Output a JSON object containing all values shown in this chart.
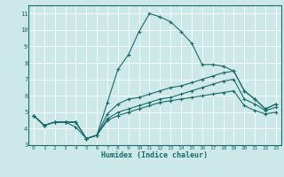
{
  "title": "",
  "xlabel": "Humidex (Indice chaleur)",
  "ylabel": "",
  "background_color": "#cde8e8",
  "grid_color": "#ffffff",
  "line_color": "#1a6b6b",
  "xlim": [
    -0.5,
    23.5
  ],
  "ylim": [
    3.0,
    11.5
  ],
  "xticks": [
    0,
    1,
    2,
    3,
    4,
    5,
    6,
    7,
    8,
    9,
    10,
    11,
    12,
    13,
    14,
    15,
    16,
    17,
    18,
    19,
    20,
    21,
    22,
    23
  ],
  "yticks": [
    3,
    4,
    5,
    6,
    7,
    8,
    9,
    10,
    11
  ],
  "lines": [
    {
      "x": [
        0,
        1,
        2,
        3,
        4,
        5,
        6,
        7,
        8,
        9,
        10,
        11,
        12,
        13,
        14,
        15,
        16,
        17,
        18,
        19,
        20,
        21,
        22,
        23
      ],
      "y": [
        4.8,
        4.2,
        4.4,
        4.4,
        4.4,
        3.4,
        3.6,
        5.6,
        7.6,
        8.5,
        9.9,
        11.0,
        10.8,
        10.5,
        9.9,
        9.2,
        7.9,
        7.9,
        7.8,
        7.5,
        6.3,
        5.8,
        5.2,
        5.5
      ]
    },
    {
      "x": [
        0,
        1,
        2,
        3,
        4,
        5,
        6,
        7,
        8,
        9,
        10,
        11,
        12,
        13,
        14,
        15,
        16,
        17,
        18,
        19,
        20,
        21,
        22,
        23
      ],
      "y": [
        4.8,
        4.2,
        4.4,
        4.4,
        4.4,
        3.4,
        3.6,
        4.9,
        5.5,
        5.8,
        5.9,
        6.1,
        6.3,
        6.5,
        6.6,
        6.8,
        7.0,
        7.2,
        7.4,
        7.5,
        6.3,
        5.8,
        5.2,
        5.5
      ]
    },
    {
      "x": [
        0,
        1,
        2,
        3,
        4,
        5,
        6,
        7,
        8,
        9,
        10,
        11,
        12,
        13,
        14,
        15,
        16,
        17,
        18,
        19,
        20,
        21,
        22,
        23
      ],
      "y": [
        4.8,
        4.2,
        4.4,
        4.4,
        4.4,
        3.4,
        3.6,
        4.6,
        5.0,
        5.2,
        5.4,
        5.6,
        5.8,
        5.9,
        6.1,
        6.3,
        6.5,
        6.7,
        6.9,
        7.0,
        5.8,
        5.5,
        5.1,
        5.3
      ]
    },
    {
      "x": [
        0,
        1,
        2,
        3,
        4,
        5,
        6,
        7,
        8,
        9,
        10,
        11,
        12,
        13,
        14,
        15,
        16,
        17,
        18,
        19,
        20,
        21,
        22,
        23
      ],
      "y": [
        4.8,
        4.2,
        4.4,
        4.4,
        4.1,
        3.4,
        3.6,
        4.5,
        4.8,
        5.0,
        5.2,
        5.4,
        5.6,
        5.7,
        5.8,
        5.9,
        6.0,
        6.1,
        6.2,
        6.3,
        5.4,
        5.1,
        4.9,
        5.0
      ]
    }
  ]
}
